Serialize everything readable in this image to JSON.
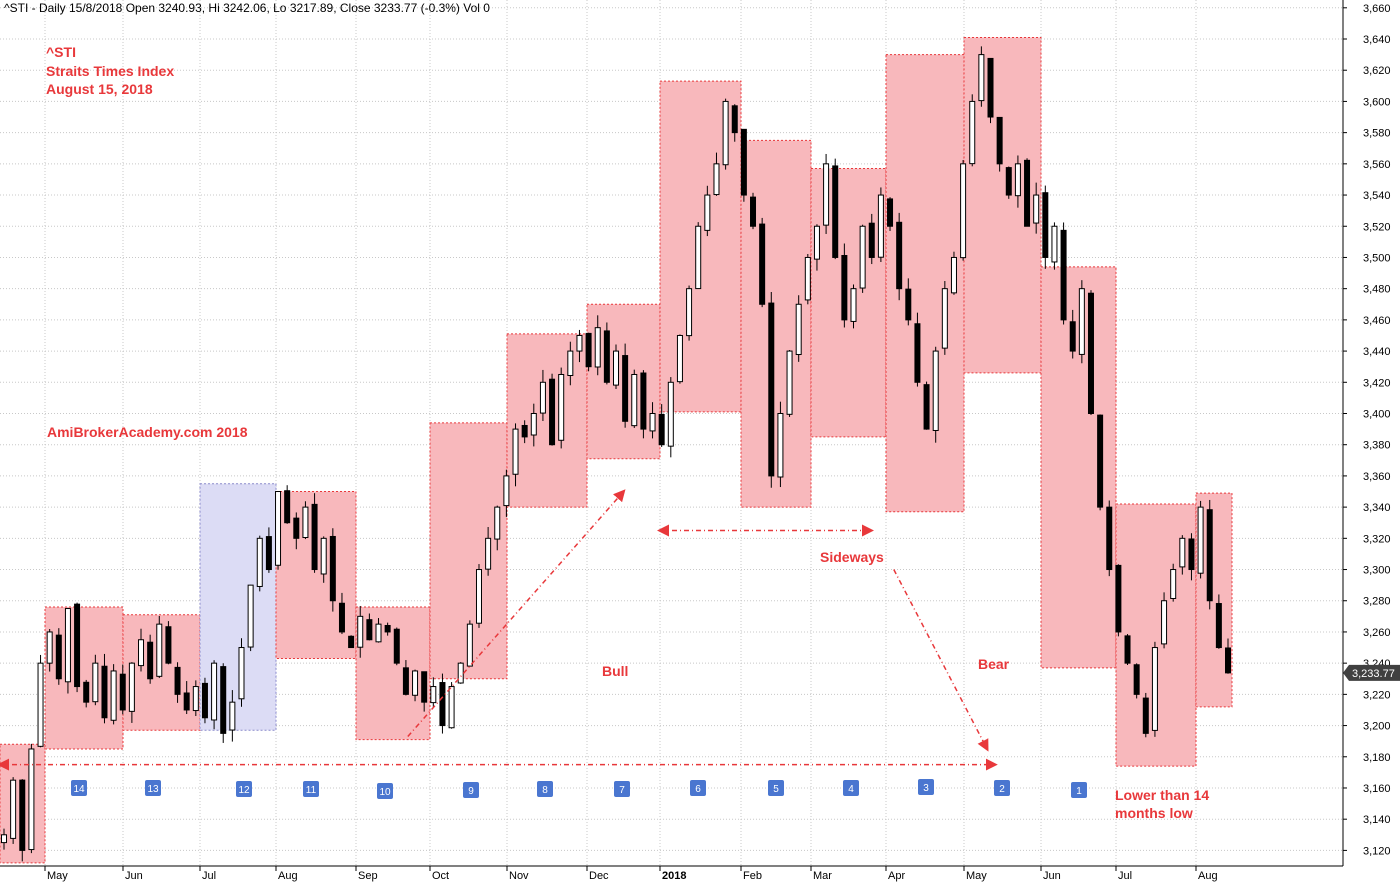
{
  "header": {
    "info": "^STI - Daily 15/8/2018 Open 3240.93, Hi 3242.06, Lo 3217.89, Close 3233.77 (-0.3%) Vol 0"
  },
  "title": {
    "symbol": "^STI",
    "name": "Straits Times Index",
    "date": "August 15, 2018"
  },
  "watermark": "AmiBrokerAcademy.com  2018",
  "annotations": {
    "bull": "Bull",
    "sideways": "Sideways",
    "bear": "Bear",
    "lower_low_line1": "Lower than 14",
    "lower_low_line2": "months low"
  },
  "last_price_label": "3,233.77",
  "colors": {
    "box_red": "#f8b8bc",
    "box_blue": "#dcdcf5",
    "accent": "#e8383b",
    "badge": "#4a76d0"
  },
  "chart_data": {
    "type": "candlestick",
    "y_axis": {
      "min": 3110,
      "max": 3665,
      "ticks": [
        3120,
        3140,
        3160,
        3180,
        3200,
        3220,
        3240,
        3260,
        3280,
        3300,
        3320,
        3340,
        3360,
        3380,
        3400,
        3420,
        3440,
        3460,
        3480,
        3500,
        3520,
        3540,
        3560,
        3580,
        3600,
        3620,
        3640,
        3660
      ],
      "tick_labels": [
        "3,120",
        "3,140",
        "3,160",
        "3,180",
        "3,200",
        "3,220",
        "3,240",
        "3,260",
        "3,280",
        "3,300",
        "3,320",
        "3,340",
        "3,360",
        "3,380",
        "3,400",
        "3,420",
        "3,440",
        "3,460",
        "3,480",
        "3,500",
        "3,520",
        "3,540",
        "3,560",
        "3,580",
        "3,600",
        "3,620",
        "3,640",
        "3,660"
      ]
    },
    "months": [
      {
        "label": "May",
        "bold": false
      },
      {
        "label": "Jun",
        "bold": false
      },
      {
        "label": "Jul",
        "bold": false
      },
      {
        "label": "Aug",
        "bold": false
      },
      {
        "label": "Sep",
        "bold": false
      },
      {
        "label": "Oct",
        "bold": false
      },
      {
        "label": "Nov",
        "bold": false
      },
      {
        "label": "Dec",
        "bold": false
      },
      {
        "label": "2018",
        "bold": true
      },
      {
        "label": "Feb",
        "bold": false
      },
      {
        "label": "Mar",
        "bold": false
      },
      {
        "label": "Apr",
        "bold": false
      },
      {
        "label": "May",
        "bold": false
      },
      {
        "label": "Jun",
        "bold": false
      },
      {
        "label": "Jul",
        "bold": false
      },
      {
        "label": "Aug",
        "bold": false
      }
    ],
    "monthly_ranges": [
      {
        "label": "Apr 2017",
        "high": 3188,
        "low": 3112
      },
      {
        "label": "May 2017",
        "high": 3276,
        "low": 3185
      },
      {
        "label": "Jun 2017",
        "high": 3271,
        "low": 3197
      },
      {
        "label": "Jul 2017",
        "high": 3355,
        "low": 3197,
        "highlight": true
      },
      {
        "label": "Aug 2017",
        "high": 3350,
        "low": 3243
      },
      {
        "label": "Sep 2017",
        "high": 3276,
        "low": 3191
      },
      {
        "label": "Oct 2017",
        "high": 3394,
        "low": 3230
      },
      {
        "label": "Nov 2017",
        "high": 3451,
        "low": 3340
      },
      {
        "label": "Dec 2017",
        "high": 3470,
        "low": 3371
      },
      {
        "label": "Jan 2018",
        "high": 3613,
        "low": 3401
      },
      {
        "label": "Feb 2018",
        "high": 3575,
        "low": 3340
      },
      {
        "label": "Mar 2018",
        "high": 3557,
        "low": 3385
      },
      {
        "label": "Apr 2018",
        "high": 3630,
        "low": 3337
      },
      {
        "label": "May 2018",
        "high": 3641,
        "low": 3426
      },
      {
        "label": "Jun 2018",
        "high": 3494,
        "low": 3237
      },
      {
        "label": "Jul 2018",
        "high": 3342,
        "low": 3174
      },
      {
        "label": "Aug 2018",
        "high": 3349,
        "low": 3212
      }
    ],
    "countdown_badges": [
      "14",
      "13",
      "12",
      "11",
      "10",
      "9",
      "8",
      "7",
      "6",
      "5",
      "4",
      "3",
      "2",
      "1"
    ],
    "daily_path": [
      3130,
      3165,
      3120,
      3185,
      3240,
      3260,
      3230,
      3275,
      3225,
      3215,
      3240,
      3205,
      3235,
      3210,
      3240,
      3255,
      3230,
      3265,
      3240,
      3220,
      3210,
      3225,
      3205,
      3240,
      3195,
      3215,
      3250,
      3290,
      3320,
      3300,
      3350,
      3330,
      3320,
      3340,
      3300,
      3320,
      3280,
      3260,
      3250,
      3270,
      3255,
      3265,
      3260,
      3240,
      3220,
      3235,
      3215,
      3225,
      3200,
      3225,
      3240,
      3265,
      3300,
      3320,
      3340,
      3360,
      3390,
      3385,
      3400,
      3420,
      3380,
      3425,
      3440,
      3450,
      3430,
      3455,
      3420,
      3440,
      3395,
      3425,
      3390,
      3400,
      3380,
      3420,
      3450,
      3480,
      3520,
      3540,
      3560,
      3600,
      3580,
      3540,
      3520,
      3470,
      3360,
      3400,
      3440,
      3470,
      3500,
      3520,
      3560,
      3500,
      3460,
      3480,
      3520,
      3500,
      3540,
      3520,
      3480,
      3460,
      3420,
      3390,
      3440,
      3480,
      3500,
      3560,
      3600,
      3630,
      3590,
      3560,
      3540,
      3560,
      3520,
      3540,
      3500,
      3520,
      3460,
      3440,
      3480,
      3400,
      3340,
      3300,
      3260,
      3240,
      3220,
      3195,
      3250,
      3280,
      3300,
      3320,
      3300,
      3340,
      3280,
      3250,
      3233.77
    ],
    "trend_lines": [
      {
        "name": "Bull",
        "from": {
          "month_index": 5.7,
          "value": 3193
        },
        "to": {
          "month_index": 8.5,
          "value": 3350
        }
      },
      {
        "name": "Sideways",
        "from": {
          "month_index": 9.0,
          "value": 3325
        },
        "to": {
          "month_index": 11.8,
          "value": 3325
        }
      },
      {
        "name": "Bear",
        "from": {
          "month_index": 12.1,
          "value": 3300
        },
        "to": {
          "month_index": 13.3,
          "value": 3185
        }
      },
      {
        "name": "14 months",
        "from": {
          "month_index": 0.0,
          "value": 3175
        },
        "to": {
          "month_index": 13.4,
          "value": 3175
        }
      }
    ]
  }
}
